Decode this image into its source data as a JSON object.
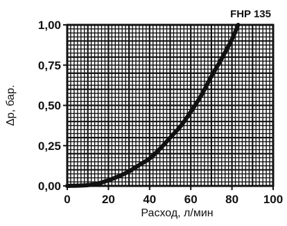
{
  "chart_data": {
    "type": "line",
    "title": "FHP 135",
    "xlabel": "Расход, л/мин",
    "ylabel": "Δp, бар.",
    "xlim": [
      0,
      100
    ],
    "ylim": [
      0,
      1.0
    ],
    "x_ticks": [
      0,
      20,
      40,
      60,
      80,
      100
    ],
    "x_tick_labels": [
      "0",
      "20",
      "40",
      "60",
      "80",
      "100"
    ],
    "y_ticks": [
      0,
      0.25,
      0.5,
      0.75,
      1.0
    ],
    "y_tick_labels": [
      "0,00",
      "0,25",
      "0,50",
      "0,75",
      "1,00"
    ],
    "grid": true,
    "series": [
      {
        "x": [
          0,
          10,
          15,
          20,
          25,
          30,
          35,
          40,
          45,
          50,
          55,
          60,
          65,
          70,
          75,
          80,
          83
        ],
        "y": [
          0.0,
          0.005,
          0.015,
          0.035,
          0.06,
          0.09,
          0.13,
          0.17,
          0.23,
          0.3,
          0.37,
          0.46,
          0.56,
          0.68,
          0.79,
          0.91,
          1.0
        ]
      }
    ],
    "colors": {
      "line": "#111111",
      "grid": "#111111",
      "background": "#ffffff"
    }
  }
}
